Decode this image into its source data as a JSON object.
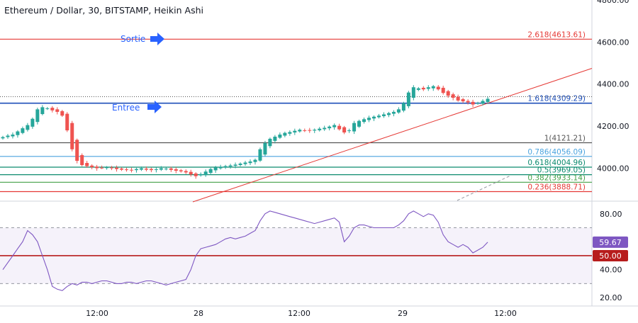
{
  "header": {
    "title": "Ethereum / Dollar, 30, BITSTAMP, Heikin Ashi"
  },
  "annotations": {
    "sortie": "Sortie",
    "entree": "Entree"
  },
  "colors": {
    "up": "#26a69a",
    "down": "#ef5350",
    "fib_red": "#e53935",
    "fib_blue": "#1e4fb8",
    "fib_dark": "#555555",
    "fib_light_blue": "#4aa3df",
    "fib_teal": "#0b8a6e",
    "fib_green": "#43a047",
    "arrow": "#2962ff",
    "rsi": "#7e57c2",
    "rsi_mid": "#b71c1c"
  },
  "chart_data": [
    {
      "type": "candlestick",
      "style": "Heikin Ashi",
      "ylim": [
        3850,
        4800
      ],
      "y_ticks": [
        "4800.00",
        "4600.00",
        "4400.00",
        "4200.00",
        "4000.00"
      ],
      "x_ticks": [
        "12:00",
        "28",
        "12:00",
        "29",
        "12:00"
      ],
      "closes": [
        4148,
        4155,
        4160,
        4175,
        4190,
        4205,
        4235,
        4280,
        4290,
        4285,
        4275,
        4268,
        4250,
        4180,
        4090,
        4035,
        4015,
        4010,
        4005,
        4000,
        4002,
        4004,
        4001,
        3996,
        3993,
        3992,
        3990,
        3996,
        4000,
        3993,
        3991,
        3995,
        4000,
        3998,
        3992,
        3988,
        3985,
        3980,
        3970,
        3962,
        3972,
        3984,
        3996,
        4003,
        4006,
        4010,
        4013,
        4017,
        4022,
        4027,
        4032,
        4040,
        4090,
        4120,
        4140,
        4150,
        4160,
        4168,
        4172,
        4178,
        4183,
        4180,
        4178,
        4183,
        4188,
        4192,
        4198,
        4205,
        4185,
        4170,
        4180,
        4215,
        4225,
        4233,
        4240,
        4245,
        4250,
        4256,
        4262,
        4268,
        4280,
        4310,
        4360,
        4385,
        4380,
        4375,
        4385,
        4390,
        4375,
        4358,
        4345,
        4335,
        4322,
        4318,
        4313,
        4303,
        4310,
        4320,
        4330
      ],
      "fib_levels": [
        {
          "ratio": "2.618",
          "price": 4613.61,
          "label": "2.618(4613.61)"
        },
        {
          "ratio": "1.618",
          "price": 4309.29,
          "label": "1.618(4309.29)"
        },
        {
          "ratio": "1",
          "price": 4121.21,
          "label": "1(4121.21)"
        },
        {
          "ratio": "0.786",
          "price": 4056.09,
          "label": "0.786(4056.09)"
        },
        {
          "ratio": "0.618",
          "price": 4004.96,
          "label": "0.618(4004.96)"
        },
        {
          "ratio": "0.5",
          "price": 3969.05,
          "label": "0.5(3969.05)"
        },
        {
          "ratio": "0.382",
          "price": 3933.14,
          "label": "0.382(3933.14)"
        },
        {
          "ratio": "0.236",
          "price": 3888.71,
          "label": "0.236(3888.71)"
        }
      ],
      "dotted_line_price": 4340,
      "trendline": {
        "from_price": 3840,
        "to_price": 4475
      }
    },
    {
      "type": "line",
      "name": "RSI",
      "ylim": [
        15,
        87
      ],
      "y_ticks": [
        "80.00",
        "60.00",
        "40.00",
        "20.00"
      ],
      "bands": [
        30,
        70
      ],
      "midline": 50,
      "current_value": "59.67",
      "midline_label": "50.00",
      "values": [
        40,
        45,
        50,
        55,
        60,
        68,
        65,
        60,
        50,
        40,
        28,
        26,
        25,
        28,
        30,
        29,
        31,
        31,
        30,
        31,
        32,
        32,
        31,
        30,
        30,
        31,
        31,
        30,
        31,
        32,
        32,
        31,
        30,
        29,
        30,
        31,
        32,
        33,
        40,
        50,
        55,
        56,
        57,
        58,
        60,
        62,
        63,
        62,
        63,
        64,
        66,
        68,
        75,
        80,
        82,
        81,
        80,
        79,
        78,
        77,
        76,
        75,
        74,
        73,
        74,
        75,
        76,
        77,
        74,
        60,
        64,
        70,
        72,
        72,
        71,
        70,
        70,
        70,
        70,
        70,
        72,
        75,
        80,
        82,
        80,
        78,
        80,
        79,
        74,
        65,
        60,
        58,
        56,
        58,
        56,
        52,
        54,
        56,
        59.67
      ]
    }
  ]
}
